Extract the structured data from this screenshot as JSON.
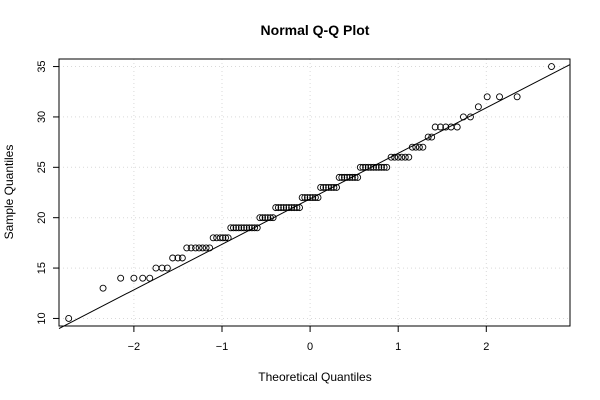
{
  "chart_data": {
    "type": "scatter",
    "title": "Normal Q-Q Plot",
    "xlabel": "Theoretical Quantiles",
    "ylabel": "Sample Quantiles",
    "xlim": [
      -2.85,
      2.95
    ],
    "ylim": [
      9.25,
      35.75
    ],
    "x_ticks": [
      -2,
      -1,
      0,
      1,
      2
    ],
    "y_ticks": [
      10,
      15,
      20,
      25,
      30,
      35
    ],
    "grid": true,
    "reference_line": {
      "x1": -2.85,
      "y1": 9.0,
      "x2": 2.95,
      "y2": 35.2
    },
    "series": [
      {
        "points": [
          [
            -2.74,
            10
          ],
          [
            -2.35,
            13
          ],
          [
            -2.15,
            14
          ],
          [
            -2.0,
            14
          ],
          [
            -1.9,
            14
          ],
          [
            -1.82,
            14
          ],
          [
            -1.75,
            15
          ],
          [
            -1.68,
            15
          ],
          [
            -1.62,
            15
          ],
          [
            -1.56,
            16
          ],
          [
            -1.5,
            16
          ],
          [
            -1.45,
            16
          ],
          [
            -1.4,
            17
          ],
          [
            -1.35,
            17
          ],
          [
            -1.3,
            17
          ],
          [
            -1.26,
            17
          ],
          [
            -1.22,
            17
          ],
          [
            -1.18,
            17
          ],
          [
            -1.14,
            17
          ],
          [
            -1.1,
            18
          ],
          [
            -1.06,
            18
          ],
          [
            -1.02,
            18
          ],
          [
            -0.99,
            18
          ],
          [
            -0.96,
            18
          ],
          [
            -0.93,
            18
          ],
          [
            -0.9,
            19
          ],
          [
            -0.87,
            19
          ],
          [
            -0.84,
            19
          ],
          [
            -0.81,
            19
          ],
          [
            -0.78,
            19
          ],
          [
            -0.75,
            19
          ],
          [
            -0.72,
            19
          ],
          [
            -0.69,
            19
          ],
          [
            -0.66,
            19
          ],
          [
            -0.63,
            19
          ],
          [
            -0.6,
            19
          ],
          [
            -0.57,
            20
          ],
          [
            -0.54,
            20
          ],
          [
            -0.51,
            20
          ],
          [
            -0.48,
            20
          ],
          [
            -0.45,
            20
          ],
          [
            -0.42,
            20
          ],
          [
            -0.39,
            21
          ],
          [
            -0.36,
            21
          ],
          [
            -0.33,
            21
          ],
          [
            -0.3,
            21
          ],
          [
            -0.27,
            21
          ],
          [
            -0.24,
            21
          ],
          [
            -0.21,
            21
          ],
          [
            -0.18,
            21
          ],
          [
            -0.15,
            21
          ],
          [
            -0.12,
            21
          ],
          [
            -0.09,
            22
          ],
          [
            -0.06,
            22
          ],
          [
            -0.03,
            22
          ],
          [
            0.0,
            22
          ],
          [
            0.03,
            22
          ],
          [
            0.06,
            22
          ],
          [
            0.09,
            22
          ],
          [
            0.12,
            23
          ],
          [
            0.15,
            23
          ],
          [
            0.18,
            23
          ],
          [
            0.21,
            23
          ],
          [
            0.24,
            23
          ],
          [
            0.27,
            23
          ],
          [
            0.3,
            23
          ],
          [
            0.33,
            24
          ],
          [
            0.36,
            24
          ],
          [
            0.39,
            24
          ],
          [
            0.42,
            24
          ],
          [
            0.45,
            24
          ],
          [
            0.48,
            24
          ],
          [
            0.51,
            24
          ],
          [
            0.54,
            24
          ],
          [
            0.57,
            25
          ],
          [
            0.6,
            25
          ],
          [
            0.63,
            25
          ],
          [
            0.66,
            25
          ],
          [
            0.69,
            25
          ],
          [
            0.72,
            25
          ],
          [
            0.75,
            25
          ],
          [
            0.78,
            25
          ],
          [
            0.81,
            25
          ],
          [
            0.84,
            25
          ],
          [
            0.87,
            25
          ],
          [
            0.92,
            26
          ],
          [
            0.96,
            26
          ],
          [
            1.0,
            26
          ],
          [
            1.04,
            26
          ],
          [
            1.08,
            26
          ],
          [
            1.12,
            26
          ],
          [
            1.16,
            27
          ],
          [
            1.2,
            27
          ],
          [
            1.24,
            27
          ],
          [
            1.28,
            27
          ],
          [
            1.34,
            28
          ],
          [
            1.38,
            28
          ],
          [
            1.42,
            29
          ],
          [
            1.48,
            29
          ],
          [
            1.54,
            29
          ],
          [
            1.6,
            29
          ],
          [
            1.67,
            29
          ],
          [
            1.74,
            30
          ],
          [
            1.82,
            30
          ],
          [
            1.91,
            31
          ],
          [
            2.01,
            32
          ],
          [
            2.15,
            32
          ],
          [
            2.35,
            32
          ],
          [
            2.74,
            35
          ]
        ]
      }
    ]
  }
}
